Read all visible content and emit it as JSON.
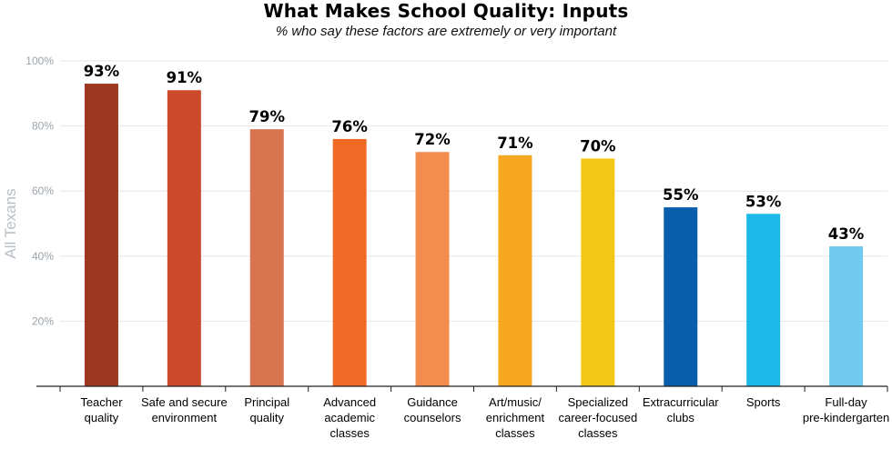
{
  "chart_data": {
    "type": "bar",
    "title": "What Makes School Quality: Inputs",
    "subtitle": "% who say these factors are extremely or very important",
    "ylabel": "All Texans",
    "xlabel": "",
    "ylim": [
      0,
      100
    ],
    "yticks": [
      "20%",
      "40%",
      "60%",
      "80%",
      "100%"
    ],
    "ytick_values": [
      20,
      40,
      60,
      80,
      100
    ],
    "grid": true,
    "categories": [
      [
        "Teacher",
        "quality"
      ],
      [
        "Safe and secure",
        "environment"
      ],
      [
        "Principal",
        "quality"
      ],
      [
        "Advanced",
        "academic",
        "classes"
      ],
      [
        "Guidance",
        "counselors"
      ],
      [
        "Art/music/",
        "enrichment",
        "classes"
      ],
      [
        "Specialized",
        "career-focused",
        "classes"
      ],
      [
        "Extracurricular",
        "clubs"
      ],
      [
        "Sports"
      ],
      [
        "Full-day",
        "pre-kindergarten"
      ]
    ],
    "values": [
      93,
      91,
      79,
      76,
      72,
      71,
      70,
      55,
      53,
      43
    ],
    "value_labels": [
      "93%",
      "91%",
      "79%",
      "76%",
      "72%",
      "71%",
      "70%",
      "55%",
      "53%",
      "43%"
    ],
    "colors": [
      "#9e3720",
      "#cc4a29",
      "#d97451",
      "#f06a26",
      "#f58c4f",
      "#f5a820",
      "#f2c817",
      "#0a5eab",
      "#1ab9ea",
      "#71c9f0"
    ],
    "gridline_color": "#e6e6e6",
    "axis_color": "#222222"
  }
}
